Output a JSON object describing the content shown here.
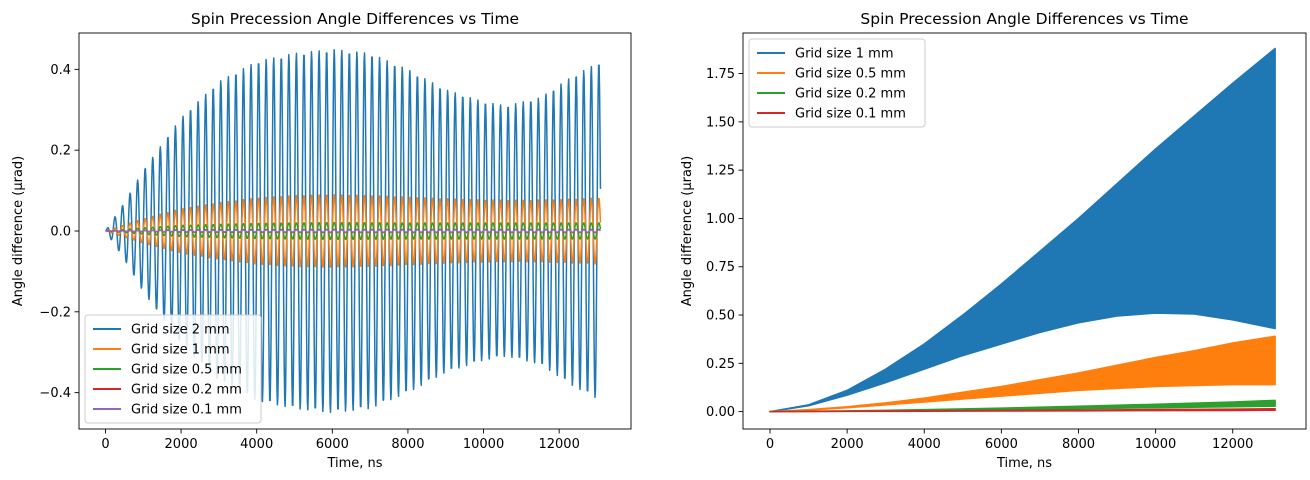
{
  "chart_data": [
    {
      "type": "line",
      "title": "Spin Precession Angle Differences vs Time",
      "xlabel": "Time, ns",
      "ylabel": "Angle difference (μrad)",
      "xlim": [
        -700,
        13900
      ],
      "ylim": [
        -0.49,
        0.49
      ],
      "xticks": [
        0,
        2000,
        4000,
        6000,
        8000,
        10000,
        12000
      ],
      "xtick_labels": [
        "0",
        "2000",
        "4000",
        "6000",
        "8000",
        "10000",
        "12000"
      ],
      "yticks": [
        -0.4,
        -0.2,
        0.0,
        0.2,
        0.4
      ],
      "ytick_labels": [
        "−0.4",
        "−0.2",
        "0.0",
        "0.2",
        "0.4"
      ],
      "legend_position": "lower-left",
      "grid": false,
      "series": [
        {
          "name": "Grid size 2 mm",
          "color": "#1f77b4",
          "style": "oscillating",
          "envelope_x": [
            0,
            500,
            1000,
            2000,
            3000,
            4000,
            5000,
            6000,
            7000,
            8000,
            9000,
            10000,
            10600,
            11500,
            12300,
            13100
          ],
          "envelope_y": [
            0.0,
            0.07,
            0.15,
            0.28,
            0.37,
            0.42,
            0.44,
            0.45,
            0.44,
            0.4,
            0.35,
            0.32,
            0.31,
            0.33,
            0.38,
            0.42
          ],
          "period_ns": 200
        },
        {
          "name": "Grid size 1 mm",
          "color": "#ff7f0e",
          "style": "oscillating",
          "envelope_x": [
            0,
            1000,
            2000,
            3000,
            4000,
            5000,
            6000,
            7000,
            8000,
            9000,
            10000,
            11000,
            12000,
            13100
          ],
          "envelope_y": [
            0.0,
            0.03,
            0.055,
            0.07,
            0.082,
            0.088,
            0.09,
            0.088,
            0.084,
            0.08,
            0.077,
            0.076,
            0.078,
            0.082
          ],
          "period_ns": 200
        },
        {
          "name": "Grid size 0.5 mm",
          "color": "#2ca02c",
          "style": "oscillating",
          "envelope_x": [
            0,
            1000,
            2000,
            4000,
            6000,
            8000,
            10000,
            13100
          ],
          "envelope_y": [
            0.0,
            0.008,
            0.014,
            0.019,
            0.021,
            0.02,
            0.02,
            0.02
          ],
          "period_ns": 200
        },
        {
          "name": "Grid size 0.2 mm",
          "color": "#d62728",
          "style": "oscillating",
          "envelope_x": [
            0,
            2000,
            6000,
            13100
          ],
          "envelope_y": [
            0.0,
            0.003,
            0.004,
            0.004
          ],
          "period_ns": 200
        },
        {
          "name": "Grid size 0.1 mm",
          "color": "#9467bd",
          "style": "oscillating",
          "envelope_x": [
            0,
            2000,
            6000,
            13100
          ],
          "envelope_y": [
            0.0,
            0.002,
            0.003,
            0.003
          ],
          "period_ns": 200
        }
      ]
    },
    {
      "type": "area",
      "title": "Spin Precession Angle Differences vs Time",
      "xlabel": "Time, ns",
      "ylabel": "Angle difference (μrad)",
      "xlim": [
        -700,
        13900
      ],
      "ylim": [
        -0.09,
        1.96
      ],
      "xticks": [
        0,
        2000,
        4000,
        6000,
        8000,
        10000,
        12000
      ],
      "xtick_labels": [
        "0",
        "2000",
        "4000",
        "6000",
        "8000",
        "10000",
        "12000"
      ],
      "yticks": [
        0.0,
        0.25,
        0.5,
        0.75,
        1.0,
        1.25,
        1.5,
        1.75
      ],
      "ytick_labels": [
        "0.00",
        "0.25",
        "0.50",
        "0.75",
        "1.00",
        "1.25",
        "1.50",
        "1.75"
      ],
      "legend_position": "upper-left",
      "grid": false,
      "series": [
        {
          "name": "Grid size 1 mm",
          "color": "#1f77b4",
          "x": [
            0,
            1000,
            2000,
            3000,
            4000,
            5000,
            6000,
            7000,
            8000,
            9000,
            10000,
            11000,
            12000,
            13100
          ],
          "upper": [
            0.0,
            0.035,
            0.11,
            0.22,
            0.35,
            0.5,
            0.66,
            0.83,
            1.0,
            1.18,
            1.36,
            1.53,
            1.7,
            1.88
          ],
          "lower": [
            0.0,
            0.03,
            0.085,
            0.15,
            0.22,
            0.29,
            0.35,
            0.41,
            0.46,
            0.495,
            0.51,
            0.505,
            0.475,
            0.43
          ]
        },
        {
          "name": "Grid size 0.5 mm",
          "color": "#ff7f0e",
          "x": [
            0,
            1000,
            2000,
            3000,
            4000,
            5000,
            6000,
            7000,
            8000,
            9000,
            10000,
            11000,
            12000,
            13100
          ],
          "upper": [
            0.0,
            0.01,
            0.025,
            0.045,
            0.07,
            0.1,
            0.13,
            0.165,
            0.2,
            0.24,
            0.28,
            0.315,
            0.355,
            0.39
          ],
          "lower": [
            0.0,
            0.008,
            0.02,
            0.035,
            0.05,
            0.065,
            0.08,
            0.095,
            0.11,
            0.12,
            0.13,
            0.135,
            0.14,
            0.14
          ]
        },
        {
          "name": "Grid size 0.2 mm",
          "color": "#2ca02c",
          "x": [
            0,
            2000,
            4000,
            6000,
            8000,
            10000,
            12000,
            13100
          ],
          "upper": [
            0.0,
            0.004,
            0.01,
            0.018,
            0.028,
            0.038,
            0.05,
            0.058
          ],
          "lower": [
            0.0,
            0.002,
            0.006,
            0.01,
            0.015,
            0.02,
            0.025,
            0.028
          ]
        },
        {
          "name": "Grid size 0.1 mm",
          "color": "#d62728",
          "x": [
            0,
            2000,
            4000,
            6000,
            8000,
            10000,
            12000,
            13100
          ],
          "upper": [
            0.0,
            0.002,
            0.004,
            0.006,
            0.008,
            0.011,
            0.013,
            0.015
          ],
          "lower": [
            0.0,
            0.001,
            0.002,
            0.003,
            0.004,
            0.005,
            0.006,
            0.007
          ]
        }
      ]
    }
  ]
}
